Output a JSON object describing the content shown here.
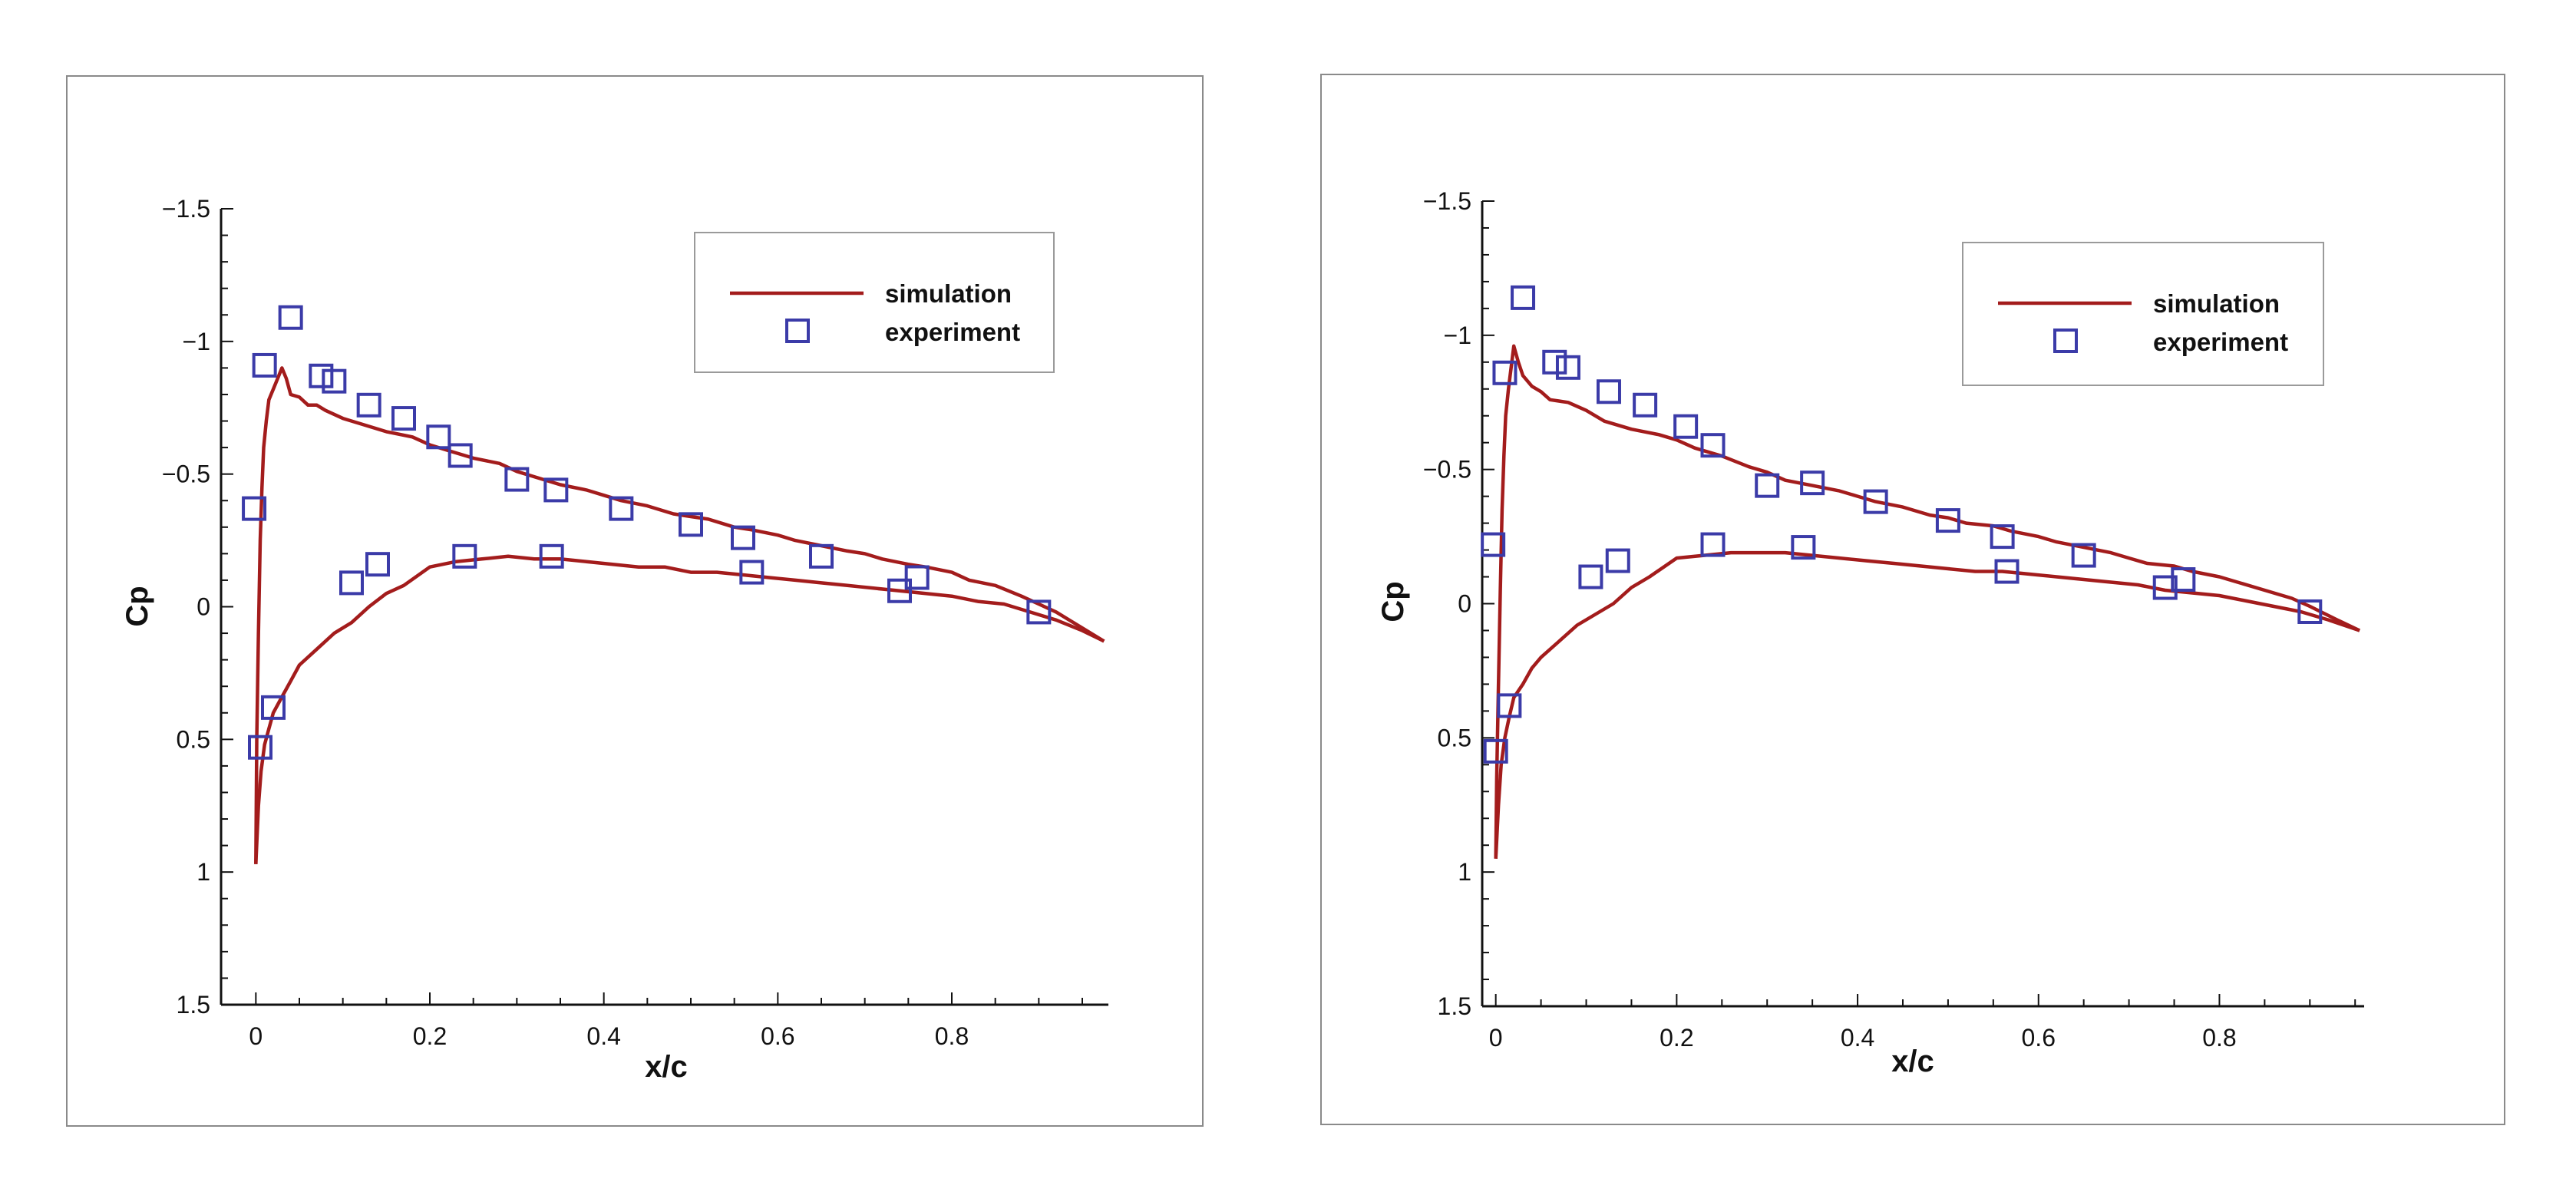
{
  "chart_data": [
    {
      "type": "line",
      "title": "",
      "xlabel": "x/c",
      "ylabel": "Cp",
      "xlim": [
        -0.04,
        0.98
      ],
      "ylim": [
        1.5,
        -1.5
      ],
      "y_inverted": true,
      "x_ticks": [
        0,
        0.2,
        0.4,
        0.6,
        0.8
      ],
      "x_tick_labels": [
        "0",
        "0.2",
        "0.4",
        "0.6",
        "0.8"
      ],
      "y_ticks": [
        -1.5,
        -1,
        -0.5,
        0,
        0.5,
        1,
        1.5
      ],
      "y_tick_labels": [
        "−1.5",
        "−1",
        "−0.5",
        "0",
        "0.5",
        "1",
        "1.5"
      ],
      "grid": false,
      "legend_position": "top-right",
      "colors": {
        "simulation": "#a31c1c",
        "experiment": "#3b3ba8"
      },
      "series": [
        {
          "name": "simulation",
          "kind": "line",
          "label": "simulation",
          "segments": [
            {
              "x": [
                0.975,
                0.95,
                0.92,
                0.9,
                0.88,
                0.85,
                0.82,
                0.8,
                0.77,
                0.75,
                0.72,
                0.7,
                0.68,
                0.65,
                0.62,
                0.6,
                0.57,
                0.55,
                0.52,
                0.5,
                0.48,
                0.45,
                0.42,
                0.4,
                0.38,
                0.35,
                0.32,
                0.3,
                0.28,
                0.25,
                0.22,
                0.2,
                0.18,
                0.15,
                0.12,
                0.1,
                0.08,
                0.07,
                0.06,
                0.05,
                0.04,
                0.035,
                0.03,
                0.025,
                0.02,
                0.015,
                0.012,
                0.009,
                0.007,
                0.005,
                0.003,
                0.001,
                0.0
              ],
              "y": [
                0.13,
                0.08,
                0.02,
                -0.01,
                -0.04,
                -0.08,
                -0.1,
                -0.13,
                -0.15,
                -0.16,
                -0.18,
                -0.2,
                -0.21,
                -0.23,
                -0.25,
                -0.27,
                -0.29,
                -0.3,
                -0.33,
                -0.34,
                -0.35,
                -0.38,
                -0.4,
                -0.42,
                -0.44,
                -0.46,
                -0.49,
                -0.51,
                -0.54,
                -0.56,
                -0.59,
                -0.61,
                -0.64,
                -0.66,
                -0.69,
                -0.71,
                -0.74,
                -0.76,
                -0.76,
                -0.79,
                -0.8,
                -0.86,
                -0.9,
                -0.86,
                -0.82,
                -0.78,
                -0.7,
                -0.6,
                -0.45,
                -0.25,
                0.1,
                0.5,
                0.97
              ]
            },
            {
              "x": [
                0.0,
                0.003,
                0.006,
                0.01,
                0.015,
                0.02,
                0.03,
                0.04,
                0.05,
                0.07,
                0.09,
                0.11,
                0.13,
                0.15,
                0.17,
                0.2,
                0.23,
                0.26,
                0.29,
                0.32,
                0.35,
                0.38,
                0.41,
                0.44,
                0.47,
                0.5,
                0.53,
                0.56,
                0.59,
                0.62,
                0.65,
                0.68,
                0.71,
                0.74,
                0.77,
                0.8,
                0.83,
                0.86,
                0.89,
                0.92,
                0.95,
                0.975
              ],
              "y": [
                0.97,
                0.75,
                0.62,
                0.52,
                0.46,
                0.4,
                0.34,
                0.28,
                0.22,
                0.16,
                0.1,
                0.06,
                0.0,
                -0.05,
                -0.08,
                -0.15,
                -0.17,
                -0.18,
                -0.19,
                -0.18,
                -0.18,
                -0.17,
                -0.16,
                -0.15,
                -0.15,
                -0.13,
                -0.13,
                -0.12,
                -0.11,
                -0.1,
                -0.09,
                -0.08,
                -0.07,
                -0.06,
                -0.05,
                -0.04,
                -0.02,
                -0.01,
                0.02,
                0.05,
                0.09,
                0.13
              ]
            }
          ]
        },
        {
          "name": "experiment",
          "kind": "scatter",
          "marker": "square",
          "label": "experiment",
          "x": [
            -0.002,
            0.01,
            0.04,
            0.075,
            0.09,
            0.13,
            0.17,
            0.21,
            0.235,
            0.3,
            0.345,
            0.42,
            0.5,
            0.56,
            0.65,
            0.74,
            0.76,
            0.9,
            0.005,
            0.02,
            0.11,
            0.14,
            0.24,
            0.34,
            0.57
          ],
          "y": [
            -0.37,
            -0.91,
            -1.09,
            -0.87,
            -0.85,
            -0.76,
            -0.71,
            -0.64,
            -0.57,
            -0.48,
            -0.44,
            -0.37,
            -0.31,
            -0.26,
            -0.19,
            -0.06,
            -0.11,
            0.02,
            0.53,
            0.38,
            -0.09,
            -0.16,
            -0.19,
            -0.19,
            -0.13
          ]
        }
      ]
    },
    {
      "type": "line",
      "title": "",
      "xlabel": "x/c",
      "ylabel": "Cp",
      "xlim": [
        -0.015,
        0.96
      ],
      "ylim": [
        1.5,
        -1.5
      ],
      "y_inverted": true,
      "x_ticks": [
        0,
        0.2,
        0.4,
        0.6,
        0.8
      ],
      "x_tick_labels": [
        "0",
        "0.2",
        "0.4",
        "0.6",
        "0.8"
      ],
      "y_ticks": [
        -1.5,
        -1,
        -0.5,
        0,
        0.5,
        1,
        1.5
      ],
      "y_tick_labels": [
        "−1.5",
        "−1",
        "−0.5",
        "0",
        "0.5",
        "1",
        "1.5"
      ],
      "grid": false,
      "legend_position": "top-right",
      "colors": {
        "simulation": "#a31c1c",
        "experiment": "#3b3ba8"
      },
      "series": [
        {
          "name": "simulation",
          "kind": "line",
          "label": "simulation",
          "segments": [
            {
              "x": [
                0.955,
                0.93,
                0.9,
                0.88,
                0.85,
                0.82,
                0.8,
                0.77,
                0.75,
                0.72,
                0.7,
                0.68,
                0.65,
                0.62,
                0.6,
                0.57,
                0.55,
                0.52,
                0.5,
                0.48,
                0.45,
                0.42,
                0.4,
                0.38,
                0.35,
                0.32,
                0.3,
                0.28,
                0.25,
                0.22,
                0.2,
                0.18,
                0.15,
                0.12,
                0.1,
                0.08,
                0.06,
                0.05,
                0.04,
                0.03,
                0.025,
                0.02,
                0.017,
                0.014,
                0.011,
                0.009,
                0.007,
                0.005,
                0.003,
                0.001,
                0.0
              ],
              "y": [
                0.1,
                0.06,
                0.01,
                -0.02,
                -0.05,
                -0.08,
                -0.1,
                -0.12,
                -0.14,
                -0.15,
                -0.17,
                -0.19,
                -0.21,
                -0.23,
                -0.25,
                -0.27,
                -0.29,
                -0.3,
                -0.32,
                -0.33,
                -0.36,
                -0.38,
                -0.4,
                -0.42,
                -0.44,
                -0.46,
                -0.49,
                -0.51,
                -0.55,
                -0.58,
                -0.61,
                -0.63,
                -0.65,
                -0.68,
                -0.72,
                -0.75,
                -0.76,
                -0.79,
                -0.81,
                -0.85,
                -0.9,
                -0.96,
                -0.88,
                -0.8,
                -0.7,
                -0.55,
                -0.35,
                -0.05,
                0.3,
                0.65,
                0.95
              ]
            },
            {
              "x": [
                0.0,
                0.003,
                0.006,
                0.01,
                0.015,
                0.02,
                0.03,
                0.04,
                0.05,
                0.07,
                0.09,
                0.11,
                0.13,
                0.15,
                0.17,
                0.2,
                0.23,
                0.26,
                0.29,
                0.32,
                0.35,
                0.38,
                0.41,
                0.44,
                0.47,
                0.5,
                0.53,
                0.56,
                0.59,
                0.62,
                0.65,
                0.68,
                0.71,
                0.74,
                0.77,
                0.8,
                0.83,
                0.86,
                0.89,
                0.92,
                0.955
              ],
              "y": [
                0.95,
                0.75,
                0.6,
                0.5,
                0.42,
                0.35,
                0.3,
                0.24,
                0.2,
                0.14,
                0.08,
                0.04,
                0.0,
                -0.06,
                -0.1,
                -0.17,
                -0.18,
                -0.19,
                -0.19,
                -0.19,
                -0.18,
                -0.17,
                -0.16,
                -0.15,
                -0.14,
                -0.13,
                -0.12,
                -0.12,
                -0.11,
                -0.1,
                -0.09,
                -0.08,
                -0.07,
                -0.05,
                -0.04,
                -0.03,
                -0.01,
                0.01,
                0.03,
                0.06,
                0.1
              ]
            }
          ]
        },
        {
          "name": "experiment",
          "kind": "scatter",
          "marker": "square",
          "label": "experiment",
          "x": [
            -0.003,
            0.01,
            0.03,
            0.065,
            0.08,
            0.125,
            0.165,
            0.21,
            0.24,
            0.3,
            0.35,
            0.42,
            0.5,
            0.56,
            0.65,
            0.74,
            0.76,
            0.9,
            0.0,
            0.015,
            0.105,
            0.135,
            0.24,
            0.34,
            0.565
          ],
          "y": [
            -0.22,
            -0.86,
            -1.14,
            -0.9,
            -0.88,
            -0.79,
            -0.74,
            -0.66,
            -0.59,
            -0.44,
            -0.45,
            -0.38,
            -0.31,
            -0.25,
            -0.18,
            -0.06,
            -0.09,
            0.03,
            0.55,
            0.38,
            -0.1,
            -0.16,
            -0.22,
            -0.21,
            -0.12
          ]
        }
      ]
    }
  ]
}
